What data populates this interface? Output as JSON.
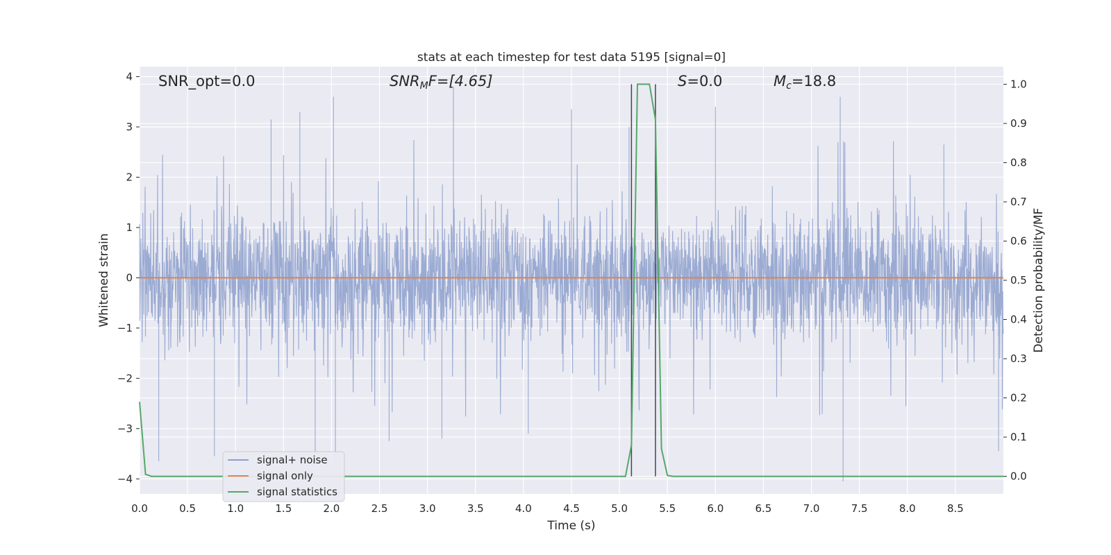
{
  "chart_data": {
    "type": "line",
    "title": "stats at each timestep for test data 5195 [signal=0]",
    "xlabel": "Time (s)",
    "ylabel": "Whitened strain",
    "y2label": "Detection probability/MF",
    "xlim": [
      0.0,
      9.0
    ],
    "ylim": [
      -4.3,
      4.2
    ],
    "y2lim": [
      -0.045,
      1.045
    ],
    "xticks": [
      "0.0",
      "0.5",
      "1.0",
      "1.5",
      "2.0",
      "2.5",
      "3.0",
      "3.5",
      "4.0",
      "4.5",
      "5.0",
      "5.5",
      "6.0",
      "6.5",
      "7.0",
      "7.5",
      "8.0",
      "8.5"
    ],
    "yticks": [
      "4",
      "3",
      "2",
      "1",
      "0",
      "−1",
      "−2",
      "−3",
      "−4"
    ],
    "y2ticks": [
      "1.0",
      "0.9",
      "0.8",
      "0.7",
      "0.6",
      "0.5",
      "0.4",
      "0.3",
      "0.2",
      "0.1",
      "0.0"
    ],
    "annotations": {
      "snr_opt": "SNR_opt=0.0",
      "snr_mf_base": "SNR",
      "snr_mf_sub": "M",
      "snr_mf_rest": "F=[4.65]",
      "s_label": "S",
      "s_value": "=0.0",
      "mc_base": "M",
      "mc_sub": "c",
      "mc_value": "=18.8"
    },
    "vertical_lines_x": [
      5.125,
      5.375
    ],
    "grid": true,
    "legend_position": "lower-left",
    "series": [
      {
        "name": "signal+ noise",
        "color": "#8c9fcc",
        "description_kind": "dense noise",
        "duration_s": 9.0,
        "sample_rate_hz": 2048,
        "dense_range": [
          -1.6,
          1.5
        ],
        "notable_peaks": [
          {
            "x": 1.67,
            "y": 3.3
          },
          {
            "x": 2.02,
            "y": 3.6
          },
          {
            "x": 1.37,
            "y": 3.15
          },
          {
            "x": 3.27,
            "y": 3.8
          },
          {
            "x": 4.5,
            "y": 3.35
          },
          {
            "x": 5.1,
            "y": 3.0
          },
          {
            "x": 6.0,
            "y": 3.4
          },
          {
            "x": 7.3,
            "y": 3.6
          },
          {
            "x": 8.38,
            "y": 2.65
          }
        ],
        "notable_troughs": [
          {
            "x": 0.2,
            "y": -3.65
          },
          {
            "x": 0.78,
            "y": -3.55
          },
          {
            "x": 1.83,
            "y": -3.5
          },
          {
            "x": 2.04,
            "y": -3.6
          },
          {
            "x": 2.6,
            "y": -3.25
          },
          {
            "x": 3.15,
            "y": -3.2
          },
          {
            "x": 4.05,
            "y": -3.1
          },
          {
            "x": 7.33,
            "y": -4.05
          },
          {
            "x": 8.95,
            "y": -3.45
          }
        ]
      },
      {
        "name": "signal only",
        "color": "#dd8452",
        "x": [
          0.0,
          9.0
        ],
        "y": [
          0.0,
          0.0
        ]
      },
      {
        "name": "signal statistics",
        "color": "#55a868",
        "axis": "right",
        "x": [
          0.0,
          0.0625,
          0.125,
          5.0625,
          5.125,
          5.1875,
          5.25,
          5.3125,
          5.375,
          5.4375,
          5.5,
          5.5625,
          5.625,
          9.0
        ],
        "y": [
          0.19,
          0.005,
          0.0,
          0.0,
          0.08,
          1.0,
          1.0,
          1.0,
          0.91,
          0.07,
          0.002,
          0.0,
          0.0,
          0.0
        ]
      }
    ]
  }
}
